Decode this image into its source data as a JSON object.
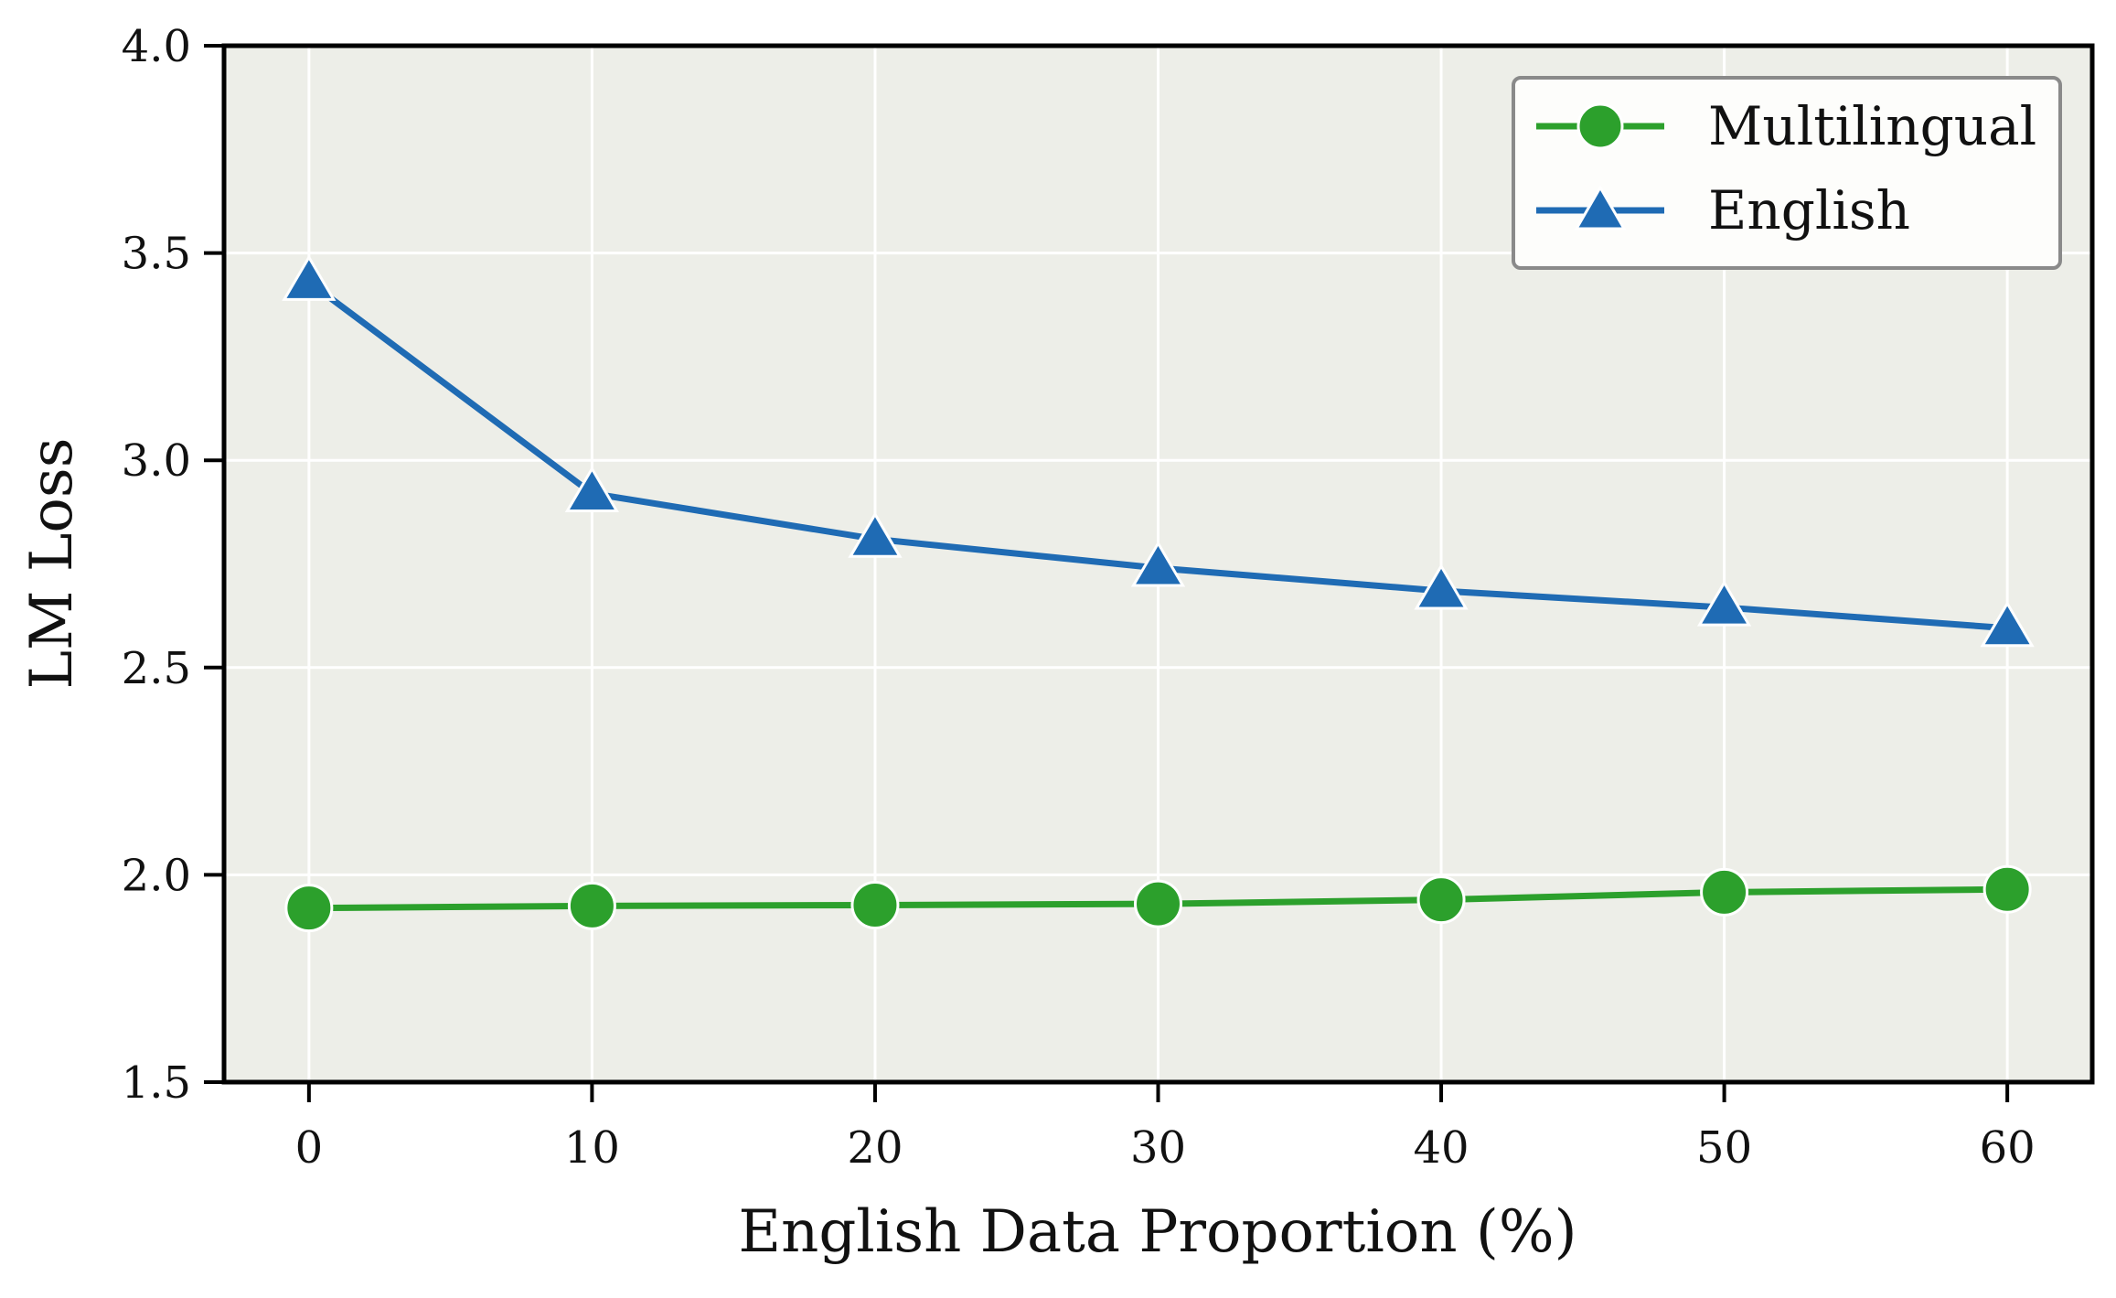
{
  "chart_data": {
    "type": "line",
    "title": "",
    "xlabel": "English Data Proportion (%)",
    "ylabel": "LM Loss",
    "xlim": [
      -3,
      63
    ],
    "ylim": [
      1.5,
      4.0
    ],
    "x": [
      0,
      10,
      20,
      30,
      40,
      50,
      60
    ],
    "xticks": [
      "0",
      "10",
      "20",
      "30",
      "40",
      "50",
      "60"
    ],
    "yticks": [
      "1.5",
      "2.0",
      "2.5",
      "3.0",
      "3.5",
      "4.0"
    ],
    "grid": true,
    "legend_position": "top-right",
    "plot_background": "#edeee8",
    "series": [
      {
        "name": "Multilingual",
        "marker": "circle",
        "color": "#2ca02c",
        "values": [
          1.92,
          1.925,
          1.927,
          1.93,
          1.94,
          1.958,
          1.965
        ]
      },
      {
        "name": "English",
        "marker": "triangle",
        "color": "#1f6bb4",
        "values": [
          3.43,
          2.92,
          2.81,
          2.74,
          2.685,
          2.645,
          2.595
        ]
      }
    ]
  }
}
